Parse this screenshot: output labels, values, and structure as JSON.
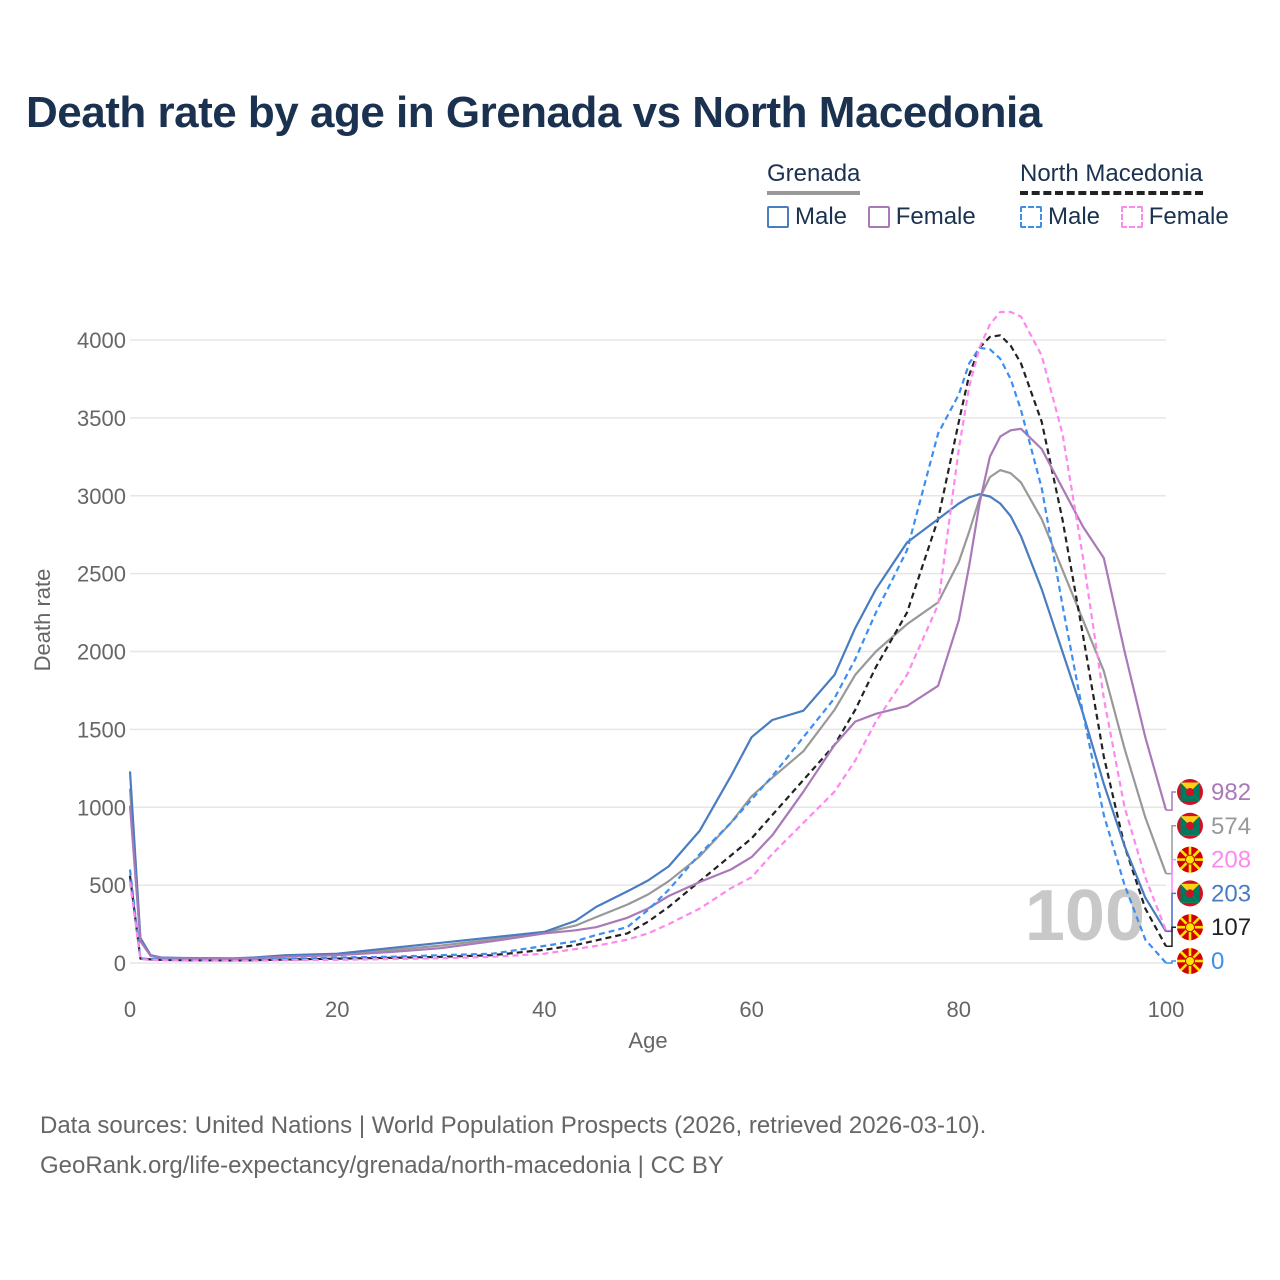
{
  "title": "Death rate by age in Grenada vs North Macedonia",
  "legend": {
    "groups": [
      {
        "name": "Grenada",
        "items": [
          {
            "label": "Male",
            "color": "#4a7cc0",
            "dash": "solid"
          },
          {
            "label": "Female",
            "color": "#a979b8",
            "dash": "solid"
          }
        ]
      },
      {
        "name": "North Macedonia",
        "items": [
          {
            "label": "Male",
            "color": "#3d8ef0",
            "dash": "dashed"
          },
          {
            "label": "Female",
            "color": "#ff88ee",
            "dash": "dashed"
          }
        ]
      }
    ],
    "head_colors": [
      "#999999",
      "#222222"
    ]
  },
  "chart_data": {
    "type": "line",
    "title": "Death rate by age in Grenada vs North Macedonia",
    "xlabel": "Age",
    "ylabel": "Death rate",
    "xlim": [
      0,
      100
    ],
    "ylim": [
      0,
      4000
    ],
    "xticks": [
      0,
      20,
      40,
      60,
      80,
      100
    ],
    "yticks": [
      0,
      500,
      1000,
      1500,
      2000,
      2500,
      3000,
      3500,
      4000
    ],
    "grid": "horizontal",
    "watermark": "100",
    "x": [
      0,
      1,
      2,
      3,
      5,
      10,
      12,
      15,
      20,
      25,
      30,
      35,
      40,
      43,
      45,
      48,
      50,
      52,
      55,
      58,
      60,
      62,
      65,
      68,
      70,
      72,
      75,
      78,
      80,
      81,
      82,
      83,
      84,
      85,
      86,
      88,
      90,
      92,
      94,
      96,
      98,
      100
    ],
    "series": [
      {
        "name": "Grenada Male",
        "color": "#4a7cc0",
        "dash": "solid",
        "end_label": "203",
        "values": [
          1230,
          160,
          50,
          35,
          32,
          30,
          35,
          50,
          60,
          95,
          130,
          165,
          200,
          270,
          360,
          460,
          530,
          620,
          850,
          1200,
          1450,
          1560,
          1620,
          1850,
          2150,
          2400,
          2700,
          2850,
          2950,
          2990,
          3010,
          2995,
          2950,
          2870,
          2740,
          2400,
          2000,
          1600,
          1150,
          750,
          420,
          203
        ]
      },
      {
        "name": "Grenada Female",
        "color": "#a979b8",
        "dash": "solid",
        "end_label": "982",
        "values": [
          1010,
          140,
          45,
          32,
          30,
          28,
          30,
          40,
          50,
          70,
          95,
          140,
          190,
          210,
          230,
          290,
          350,
          430,
          520,
          600,
          680,
          820,
          1100,
          1400,
          1550,
          1600,
          1650,
          1780,
          2200,
          2550,
          2950,
          3250,
          3380,
          3420,
          3430,
          3300,
          3050,
          2800,
          2600,
          2000,
          1450,
          982
        ]
      },
      {
        "name": "North Macedonia Male",
        "color": "#3d8ef0",
        "dash": "dashed",
        "end_label": "0",
        "values": [
          600,
          30,
          25,
          22,
          20,
          18,
          20,
          25,
          35,
          40,
          50,
          60,
          110,
          140,
          180,
          230,
          340,
          470,
          700,
          900,
          1050,
          1200,
          1450,
          1700,
          1950,
          2250,
          2650,
          3400,
          3650,
          3850,
          3950,
          3940,
          3880,
          3750,
          3550,
          3050,
          2300,
          1600,
          950,
          500,
          150,
          0
        ]
      },
      {
        "name": "North Macedonia Female",
        "color": "#ff88ee",
        "dash": "dashed",
        "end_label": "208",
        "values": [
          520,
          25,
          20,
          18,
          16,
          15,
          15,
          18,
          20,
          25,
          30,
          40,
          60,
          90,
          110,
          150,
          190,
          250,
          350,
          480,
          550,
          700,
          900,
          1100,
          1300,
          1550,
          1850,
          2300,
          3300,
          3700,
          3950,
          4100,
          4180,
          4180,
          4150,
          3900,
          3400,
          2600,
          1700,
          1000,
          550,
          208
        ]
      },
      {
        "name": "Grenada Both",
        "color": "#999999",
        "dash": "solid",
        "end_label": "574",
        "values": [
          1120,
          150,
          48,
          33,
          31,
          29,
          33,
          45,
          55,
          82,
          112,
          152,
          195,
          240,
          295,
          375,
          440,
          525,
          685,
          900,
          1070,
          1190,
          1360,
          1625,
          1850,
          2000,
          2175,
          2315,
          2575,
          2770,
          2980,
          3120,
          3165,
          3145,
          3085,
          2850,
          2525,
          2200,
          1875,
          1375,
          935,
          574
        ]
      },
      {
        "name": "North Macedonia Both",
        "color": "#222222",
        "dash": "dashed",
        "end_label": "107",
        "values": [
          560,
          28,
          23,
          20,
          18,
          17,
          18,
          22,
          28,
          33,
          40,
          50,
          85,
          115,
          145,
          190,
          265,
          360,
          525,
          690,
          800,
          950,
          1175,
          1400,
          1625,
          1900,
          2250,
          2850,
          3475,
          3775,
          3950,
          4020,
          4030,
          3965,
          3850,
          3475,
          2850,
          2100,
          1325,
          750,
          350,
          107
        ]
      }
    ],
    "end_labels": [
      {
        "value": "982",
        "color": "#a979b8",
        "flag": "grenada"
      },
      {
        "value": "574",
        "color": "#999999",
        "flag": "grenada"
      },
      {
        "value": "208",
        "color": "#ff88ee",
        "flag": "north-macedonia"
      },
      {
        "value": "203",
        "color": "#4a7cc0",
        "flag": "grenada"
      },
      {
        "value": "107",
        "color": "#222222",
        "flag": "north-macedonia"
      },
      {
        "value": "0",
        "color": "#3d8ef0",
        "flag": "north-macedonia"
      }
    ]
  },
  "footer": {
    "line1": "Data sources: United Nations | World Population Prospects (2026, retrieved 2026-03-10).",
    "line2": "GeoRank.org/life-expectancy/grenada/north-macedonia | CC BY"
  }
}
